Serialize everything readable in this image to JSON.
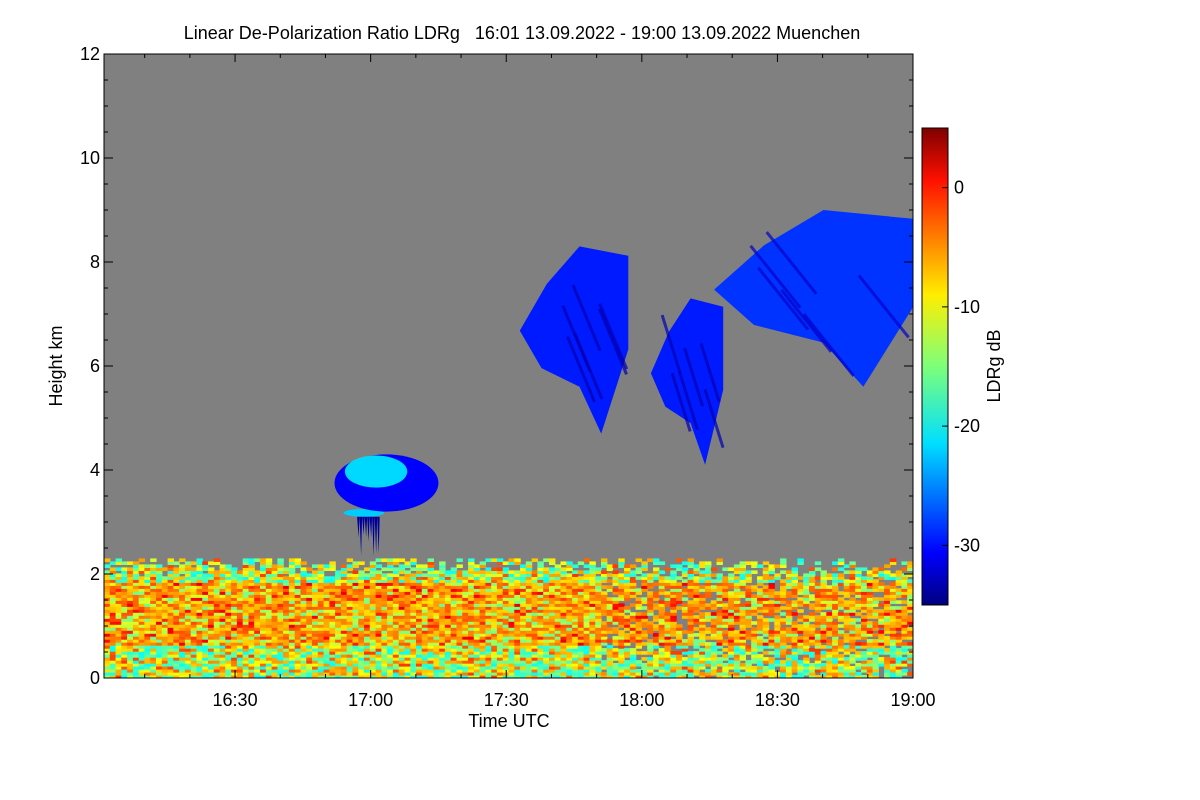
{
  "chart_data": {
    "type": "heatmap",
    "title": "Linear De-Polarization Ratio LDRg   16:01 13.09.2022 - 19:00 13.09.2022 Muenchen",
    "xlabel": "Time UTC",
    "ylabel": "Height km",
    "colorbar_label": "LDRg dB",
    "xlim_minutes_utc": [
      961,
      1140
    ],
    "x_ticks": [
      {
        "minute": 990,
        "label": "16:30"
      },
      {
        "minute": 1020,
        "label": "17:00"
      },
      {
        "minute": 1050,
        "label": "17:30"
      },
      {
        "minute": 1080,
        "label": "18:00"
      },
      {
        "minute": 1110,
        "label": "18:30"
      },
      {
        "minute": 1140,
        "label": "19:00"
      }
    ],
    "ylim_km": [
      0,
      12
    ],
    "y_ticks": [
      0,
      2,
      4,
      6,
      8,
      10,
      12
    ],
    "color_range_db": [
      -35,
      5
    ],
    "colorbar_ticks": [
      {
        "value": 0,
        "label": "0"
      },
      {
        "value": -10,
        "label": "-10"
      },
      {
        "value": -20,
        "label": "-20"
      },
      {
        "value": -30,
        "label": "-30"
      }
    ],
    "colormap": "jet",
    "no_data_color": "#808080",
    "features": [
      {
        "name": "boundary-layer-aerosol",
        "t_start": 961,
        "t_end": 1140,
        "h_bottom": 0.0,
        "h_top": 2.3,
        "ldr_db_range": [
          -25,
          -5
        ]
      },
      {
        "name": "low-cloud-base-17h",
        "t_start": 1014,
        "t_end": 1023,
        "h_bottom": 3.1,
        "h_top": 3.25,
        "ldr_db": -22
      },
      {
        "name": "virga-17h",
        "t_start": 1017,
        "t_end": 1022,
        "h_bottom": 2.1,
        "h_top": 3.1,
        "ldr_db": -34
      },
      {
        "name": "mid-cloud-17h",
        "t_start": 1012,
        "t_end": 1035,
        "h_bottom": 3.2,
        "h_top": 4.3,
        "ldr_db_range": [
          -30,
          -20
        ]
      },
      {
        "name": "cirrus-17h45",
        "t_start": 1053,
        "t_end": 1077,
        "h_bottom": 4.7,
        "h_top": 8.3,
        "ldr_db": -29
      },
      {
        "name": "cirrus-18h05",
        "t_start": 1082,
        "t_end": 1098,
        "h_bottom": 4.1,
        "h_top": 7.3,
        "ldr_db": -29
      },
      {
        "name": "cirrus-18h30",
        "t_start": 1096,
        "t_end": 1140,
        "h_bottom": 5.6,
        "h_top": 9.0,
        "ldr_db": -28
      }
    ]
  }
}
